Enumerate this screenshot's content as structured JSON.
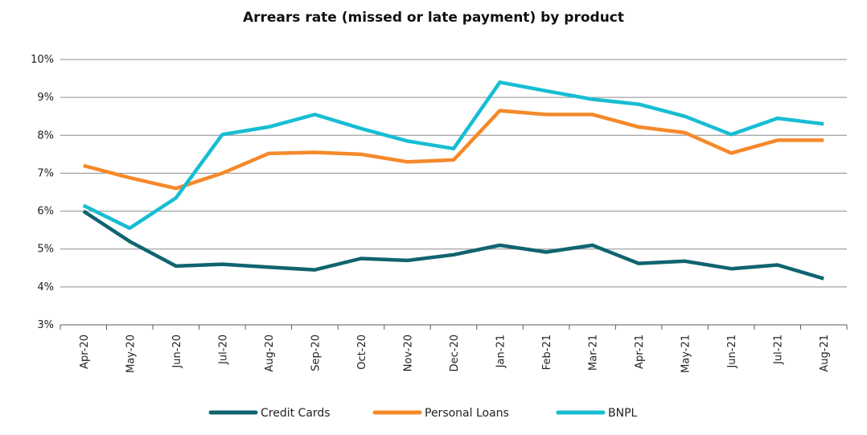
{
  "chart_data": {
    "type": "line",
    "title": "Arrears rate (missed or late payment) by product",
    "xlabel": "",
    "ylabel": "",
    "categories": [
      "Apr-20",
      "May-20",
      "Jun-20",
      "Jul-20",
      "Aug-20",
      "Sep-20",
      "Oct-20",
      "Nov-20",
      "Dec-20",
      "Jan-21",
      "Feb-21",
      "Mar-21",
      "Apr-21",
      "May-21",
      "Jun-21",
      "Jul-21",
      "Aug-21"
    ],
    "ylim": [
      3,
      10
    ],
    "yticks": [
      3,
      4,
      5,
      6,
      7,
      8,
      9,
      10
    ],
    "ytick_labels": [
      "3%",
      "4%",
      "5%",
      "6%",
      "7%",
      "8%",
      "9%",
      "10%"
    ],
    "grid": true,
    "legend_position": "bottom",
    "series": [
      {
        "name": "Credit Cards",
        "color": "#0f6470",
        "values": [
          6.0,
          5.2,
          4.55,
          4.6,
          4.52,
          4.45,
          4.75,
          4.7,
          4.85,
          5.1,
          4.92,
          5.1,
          4.62,
          4.68,
          4.48,
          4.58,
          4.22
        ]
      },
      {
        "name": "Personal Loans",
        "color": "#f5892a",
        "values": [
          7.2,
          6.88,
          6.6,
          7.0,
          7.52,
          7.55,
          7.5,
          7.3,
          7.35,
          8.65,
          8.55,
          8.55,
          8.22,
          8.07,
          7.53,
          7.87,
          7.87
        ]
      },
      {
        "name": "BNPL",
        "color": "#17bdd3",
        "values": [
          6.15,
          5.55,
          6.35,
          8.02,
          8.22,
          8.55,
          8.18,
          7.85,
          7.65,
          9.4,
          9.17,
          8.95,
          8.82,
          8.5,
          8.02,
          8.45,
          8.3
        ]
      }
    ]
  }
}
